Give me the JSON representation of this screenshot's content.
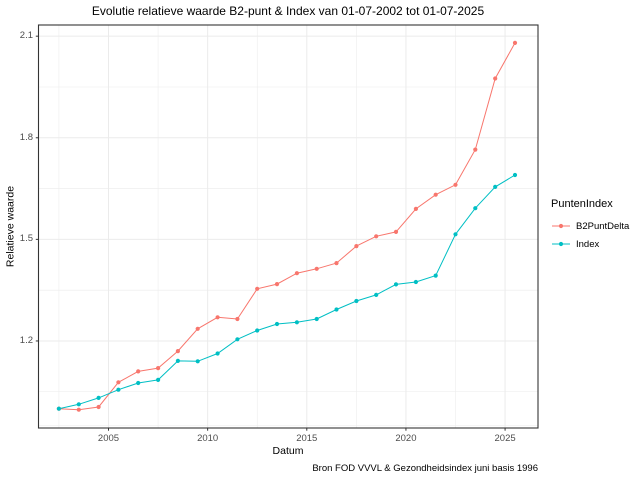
{
  "chart_data": {
    "type": "line",
    "title": "Evolutie relatieve waarde B2-punt & Index van 01-07-2002 tot 01-07-2025",
    "xlabel": "Datum",
    "ylabel": "Relatieve waarde",
    "caption": "Bron FOD VVVL & Gezondheidsindex juni basis 1996",
    "legend_title": "PuntenIndex",
    "legend_position": "right",
    "grid": true,
    "x": [
      2002.5,
      2003.5,
      2004.5,
      2005.5,
      2006.5,
      2007.5,
      2008.5,
      2009.5,
      2010.5,
      2011.5,
      2012.5,
      2013.5,
      2014.5,
      2015.5,
      2016.5,
      2017.5,
      2018.5,
      2019.5,
      2020.5,
      2021.5,
      2022.5,
      2023.5,
      2024.5,
      2025.5
    ],
    "series": [
      {
        "name": "B2PuntDelta",
        "color": "#F8766D",
        "values": [
          1.0,
          0.997,
          1.005,
          1.078,
          1.11,
          1.12,
          1.17,
          1.236,
          1.27,
          1.265,
          1.354,
          1.368,
          1.4,
          1.413,
          1.43,
          1.48,
          1.509,
          1.522,
          1.59,
          1.632,
          1.661,
          1.765,
          1.975,
          2.08
        ]
      },
      {
        "name": "Index",
        "color": "#00BFC4",
        "values": [
          1.0,
          1.013,
          1.032,
          1.056,
          1.076,
          1.085,
          1.141,
          1.14,
          1.163,
          1.205,
          1.231,
          1.25,
          1.255,
          1.265,
          1.293,
          1.318,
          1.336,
          1.367,
          1.374,
          1.393,
          1.515,
          1.592,
          1.655,
          1.69
        ]
      }
    ],
    "x_ticks": [
      2005,
      2010,
      2015,
      2020,
      2025
    ],
    "y_ticks": [
      1.2,
      1.5,
      1.8,
      2.1
    ],
    "x_minor_gridlines": [
      2002.5,
      2007.5,
      2012.5,
      2017.5,
      2022.5
    ],
    "y_minor_gridlines": [
      0.95,
      1.05,
      1.35,
      1.65,
      1.95
    ],
    "xlim": [
      2001.47,
      2026.66
    ],
    "ylim": [
      0.943,
      2.133
    ]
  },
  "colors": {
    "series_b2puntdelta": "#F8766D",
    "series_index": "#00BFC4",
    "gridline": "#EBEBEB",
    "panel_border": "#343434",
    "tick_mark": "#333333",
    "tick_label_text": "#4D4D4D",
    "text": "#000000",
    "background": "#FFFFFF"
  }
}
